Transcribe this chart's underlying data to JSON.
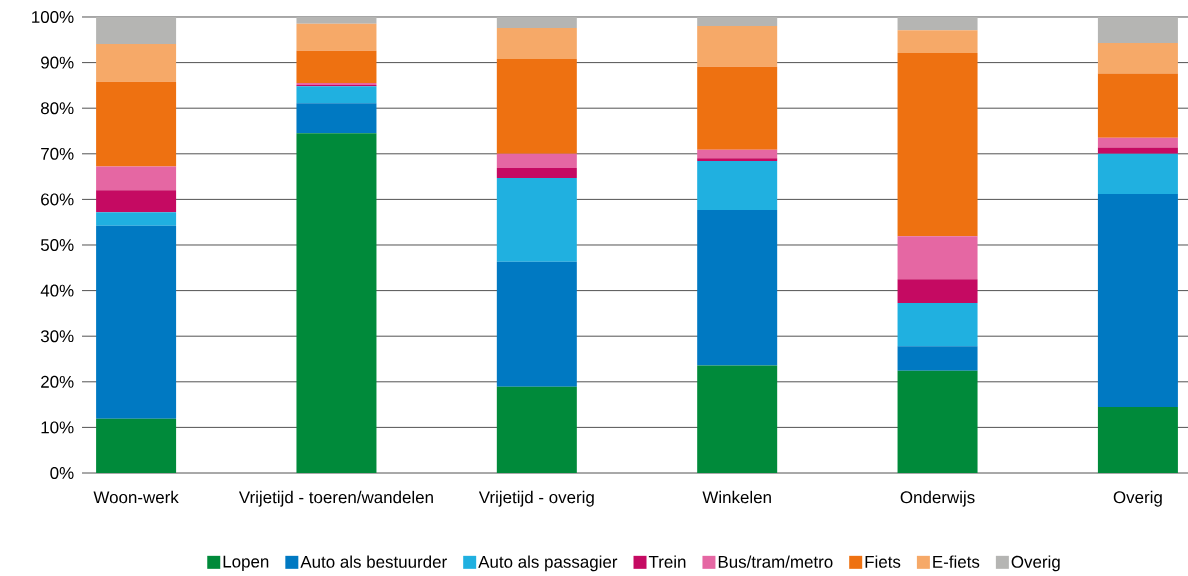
{
  "chart_data": {
    "type": "bar",
    "stacked": true,
    "grid": "y",
    "legend": "bottom",
    "categories": [
      "Woon-werk",
      "Vrijetijd - toeren/wandelen",
      "Vrijetijd - overig",
      "Winkelen",
      "Onderwijs",
      "Overig"
    ],
    "ylim": [
      0,
      100
    ],
    "yticks": [
      {
        "value": 0,
        "label": "0%"
      },
      {
        "value": 10,
        "label": "10%"
      },
      {
        "value": 20,
        "label": "20%"
      },
      {
        "value": 30,
        "label": "30%"
      },
      {
        "value": 40,
        "label": "40%"
      },
      {
        "value": 50,
        "label": "50%"
      },
      {
        "value": 60,
        "label": "60%"
      },
      {
        "value": 70,
        "label": "70%"
      },
      {
        "value": 80,
        "label": "80%"
      },
      {
        "value": 90,
        "label": "90%"
      },
      {
        "value": 100,
        "label": "100%"
      }
    ],
    "series": [
      {
        "name": "Lopen",
        "color": "#008a3a",
        "values": [
          11.9,
          74.5,
          18.9,
          23.6,
          22.4,
          14.5
        ]
      },
      {
        "name": "Auto als bestuurder",
        "color": "#0079c2",
        "values": [
          42.3,
          6.6,
          27.4,
          34.1,
          5.4,
          46.7
        ]
      },
      {
        "name": "Auto als passagier",
        "color": "#20b0e0",
        "values": [
          3.0,
          3.7,
          18.4,
          10.7,
          9.5,
          8.8
        ]
      },
      {
        "name": "Trein",
        "color": "#c50a62",
        "values": [
          4.8,
          0.3,
          2.2,
          0.6,
          5.2,
          1.4
        ]
      },
      {
        "name": "Bus/tram/metro",
        "color": "#e567a3",
        "values": [
          5.2,
          0.4,
          3.1,
          1.9,
          9.4,
          2.1
        ]
      },
      {
        "name": "Fiets",
        "color": "#ee7111",
        "values": [
          18.6,
          7.1,
          20.8,
          18.2,
          40.2,
          14.1
        ]
      },
      {
        "name": "E-fiets",
        "color": "#f6a968",
        "values": [
          8.3,
          5.9,
          6.8,
          8.9,
          5.0,
          6.7
        ]
      },
      {
        "name": "Overig",
        "color": "#b5b5b3",
        "values": [
          5.9,
          1.5,
          2.4,
          2.0,
          2.9,
          5.7
        ]
      }
    ]
  }
}
